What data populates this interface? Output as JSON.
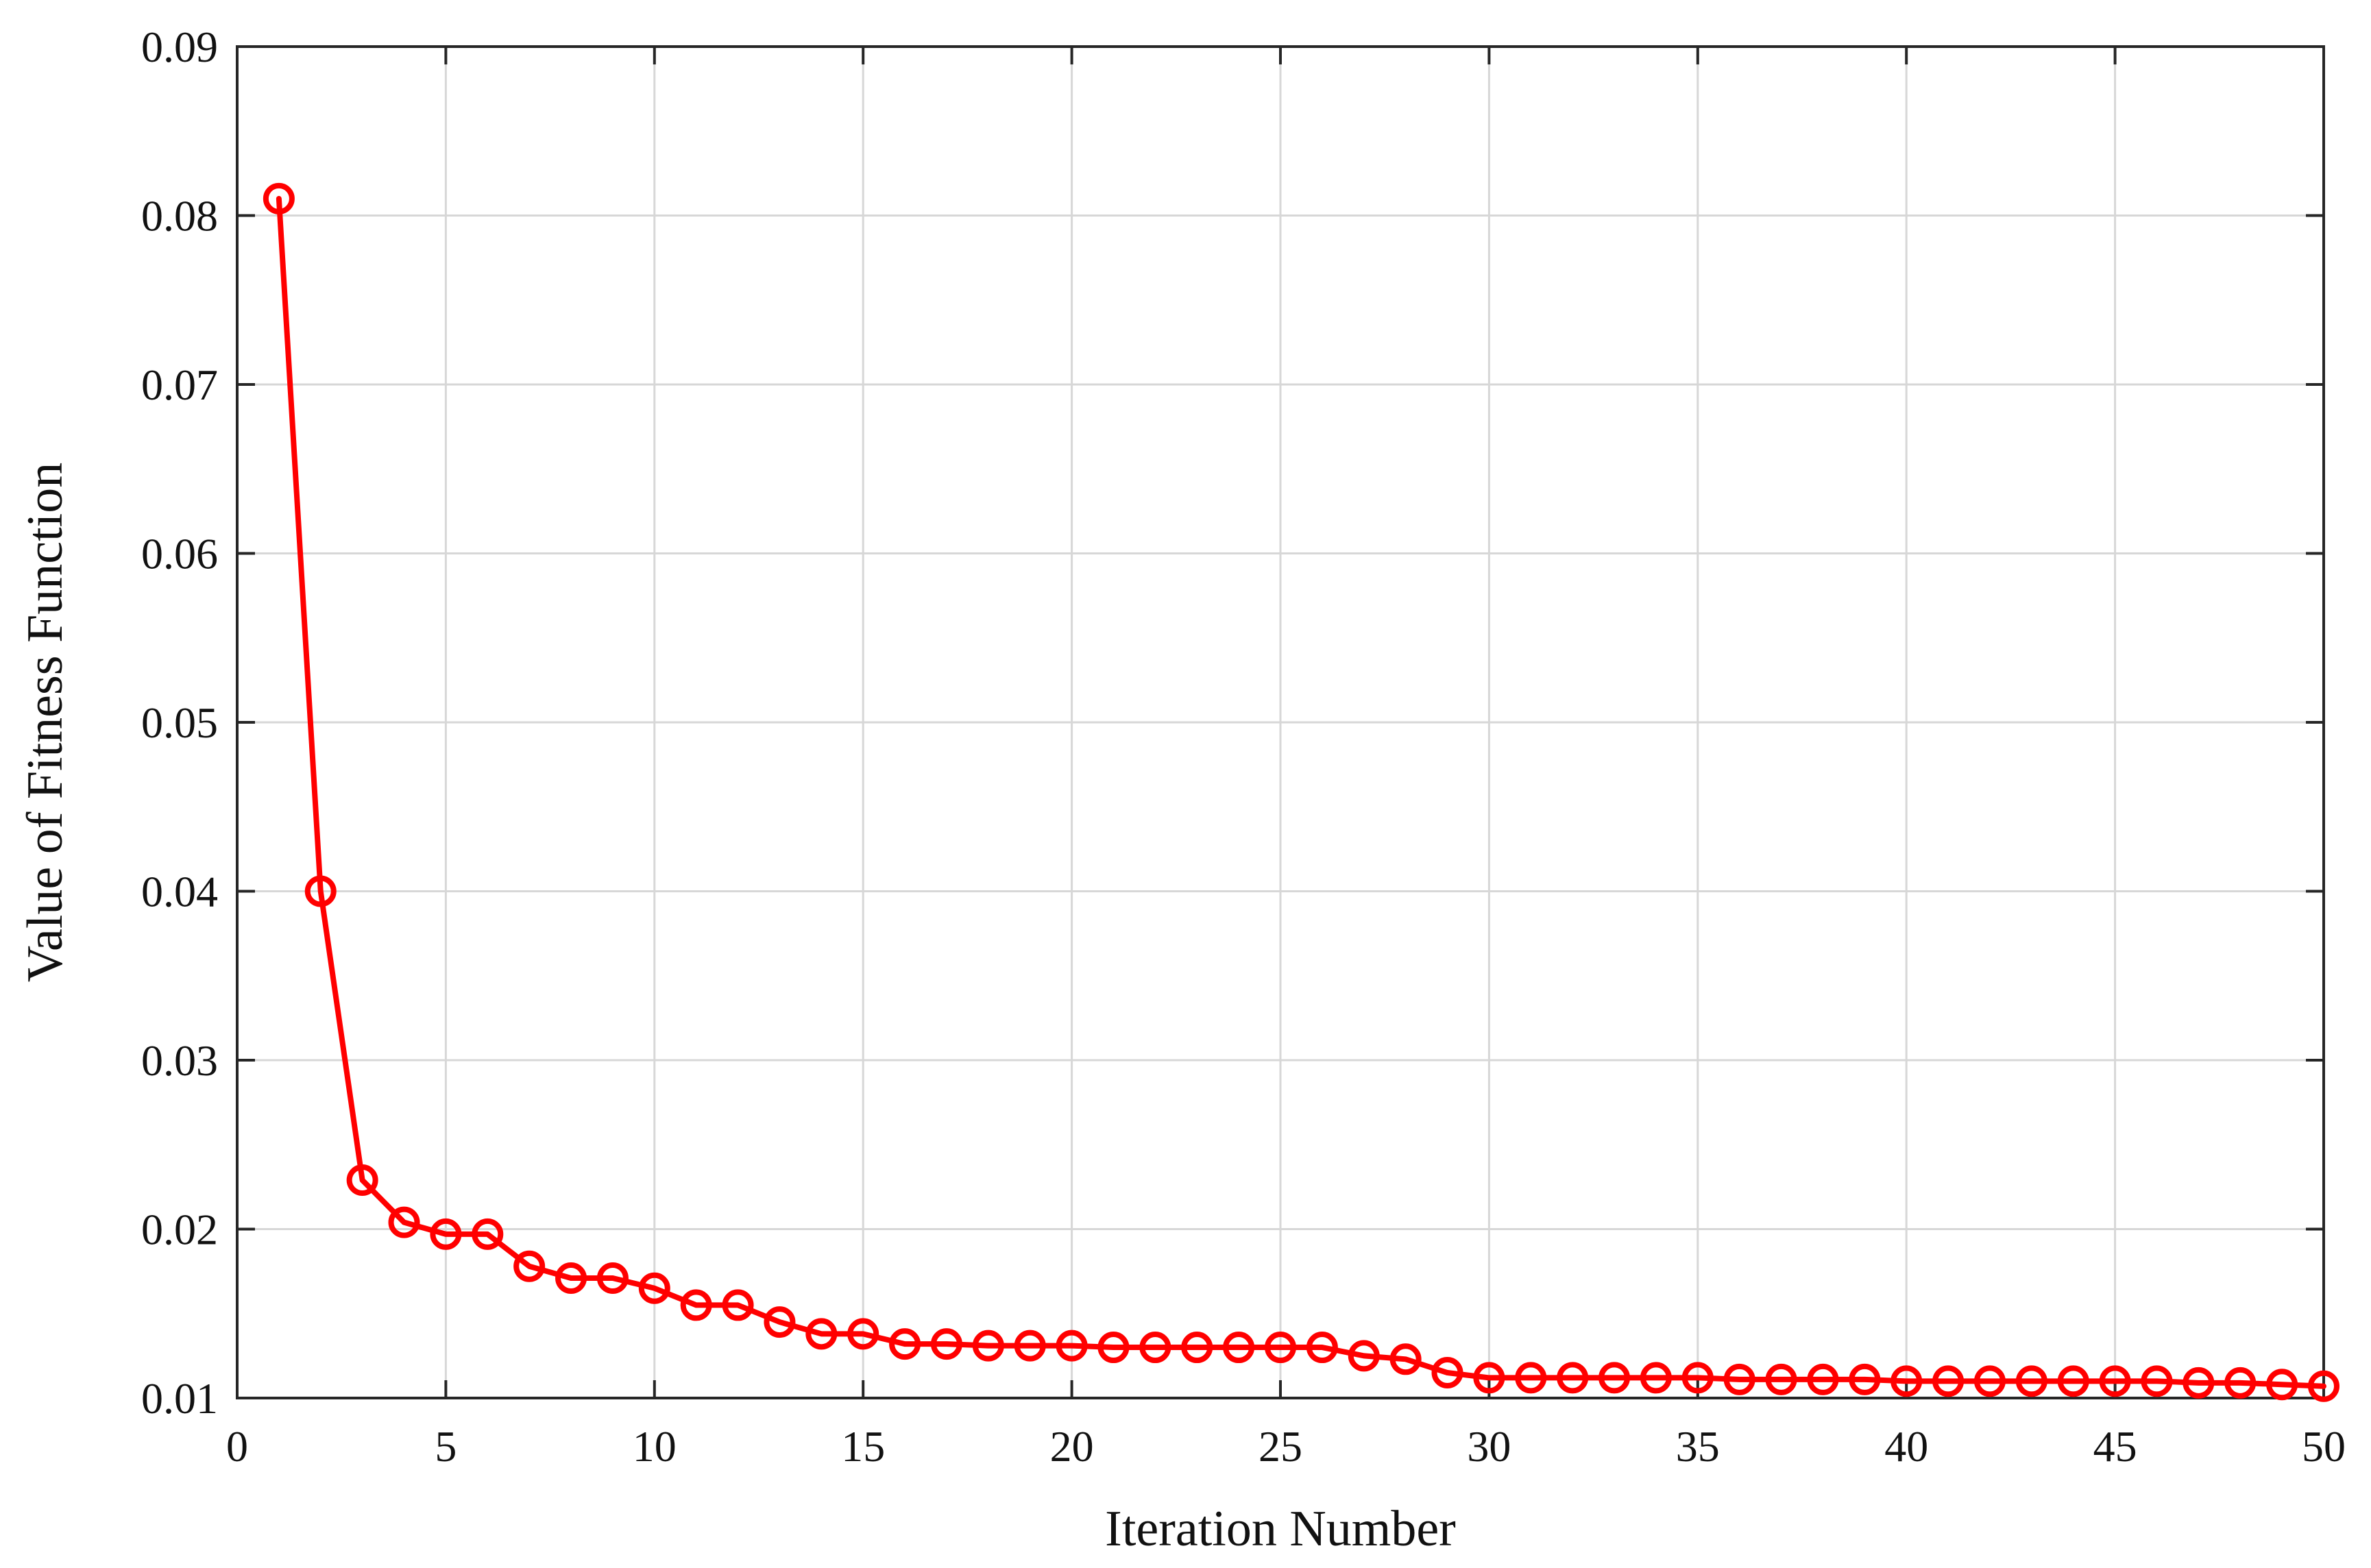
{
  "chart_data": {
    "type": "line",
    "title": "",
    "xlabel": "Iteration Number",
    "ylabel": "Value of Fitness Function",
    "xlim": [
      0,
      50
    ],
    "ylim": [
      0.01,
      0.09
    ],
    "xticks": [
      "0",
      "5",
      "10",
      "15",
      "20",
      "25",
      "30",
      "35",
      "40",
      "45",
      "50"
    ],
    "yticks": [
      "0.01",
      "0.02",
      "0.03",
      "0.04",
      "0.05",
      "0.06",
      "0.07",
      "0.08",
      "0.09"
    ],
    "grid": true,
    "legend": "none",
    "series": [
      {
        "color": "#ff0000",
        "marker": "circle-open",
        "x": [
          1,
          2,
          3,
          4,
          5,
          6,
          7,
          8,
          9,
          10,
          11,
          12,
          13,
          14,
          15,
          16,
          17,
          18,
          19,
          20,
          21,
          22,
          23,
          24,
          25,
          26,
          27,
          28,
          29,
          30,
          31,
          32,
          33,
          34,
          35,
          36,
          37,
          38,
          39,
          40,
          41,
          42,
          43,
          44,
          45,
          46,
          47,
          48,
          49,
          50
        ],
        "values": [
          0.081,
          0.04,
          0.0229,
          0.0204,
          0.0197,
          0.0197,
          0.0178,
          0.0171,
          0.0171,
          0.0165,
          0.0155,
          0.0155,
          0.0145,
          0.0138,
          0.0138,
          0.0132,
          0.0132,
          0.0131,
          0.0131,
          0.0131,
          0.013,
          0.013,
          0.013,
          0.013,
          0.013,
          0.013,
          0.0125,
          0.0123,
          0.0115,
          0.0112,
          0.0112,
          0.0112,
          0.0112,
          0.0112,
          0.0112,
          0.0111,
          0.0111,
          0.0111,
          0.0111,
          0.011,
          0.011,
          0.011,
          0.011,
          0.011,
          0.011,
          0.011,
          0.0109,
          0.0109,
          0.0108,
          0.0107
        ]
      }
    ]
  },
  "colors": {
    "series": "#ff0000",
    "grid": "#d7d7d7",
    "axis": "#262626",
    "text": "#111111"
  }
}
